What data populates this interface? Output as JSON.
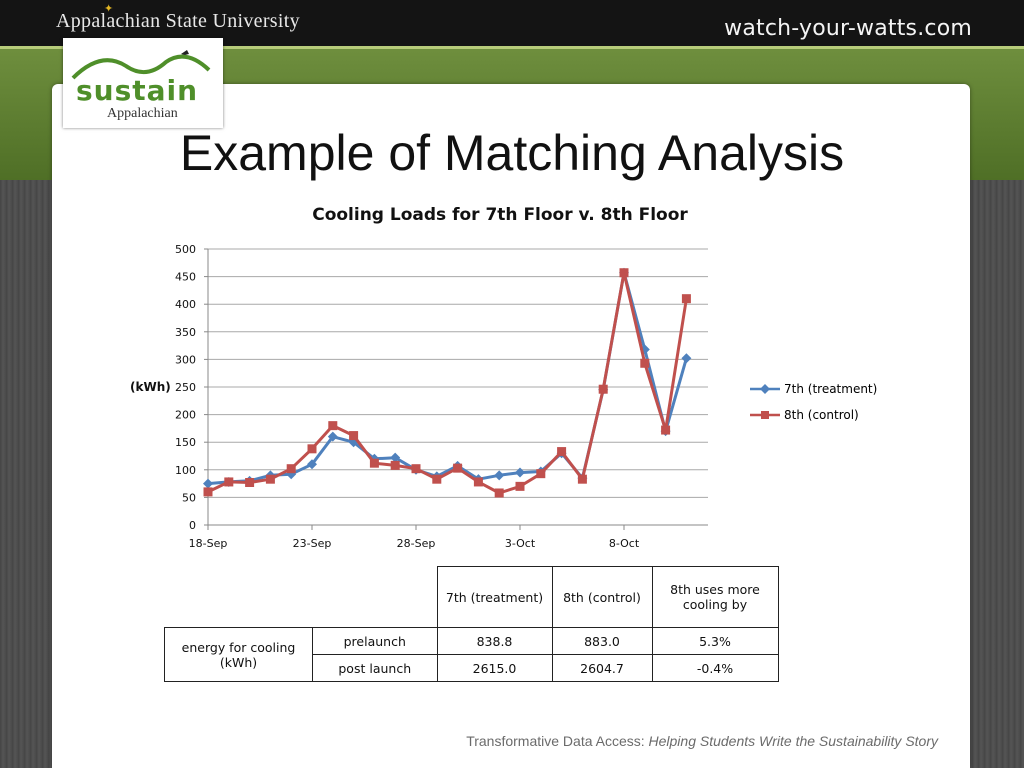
{
  "header": {
    "university": "Appalachian State University",
    "site": "watch-your-watts.com"
  },
  "logo": {
    "main": "sustain",
    "sub": "Appalachian"
  },
  "slide": {
    "title": "Example of Matching Analysis"
  },
  "chart_data": {
    "type": "line",
    "title": "Cooling Loads for 7th Floor v. 8th Floor",
    "ylabel": "(kWh)",
    "xlabel": "",
    "ylim": [
      0,
      500
    ],
    "yticks": [
      0,
      50,
      100,
      150,
      200,
      250,
      300,
      350,
      400,
      450,
      500
    ],
    "xtick_labels": [
      "18-Sep",
      "23-Sep",
      "28-Sep",
      "3-Oct",
      "8-Oct"
    ],
    "x_dates": [
      "18-Sep",
      "19-Sep",
      "20-Sep",
      "21-Sep",
      "22-Sep",
      "23-Sep",
      "24-Sep",
      "25-Sep",
      "26-Sep",
      "27-Sep",
      "28-Sep",
      "29-Sep",
      "30-Sep",
      "1-Oct",
      "2-Oct",
      "3-Oct",
      "4-Oct",
      "5-Oct",
      "6-Oct",
      "7-Oct",
      "8-Oct",
      "9-Oct",
      "10-Oct",
      "11-Oct"
    ],
    "legend_position": "right",
    "grid": true,
    "series": [
      {
        "name": "7th (treatment)",
        "color": "#4f81bd",
        "marker": "diamond",
        "values": [
          75,
          78,
          80,
          90,
          92,
          110,
          160,
          150,
          120,
          122,
          100,
          88,
          107,
          83,
          90,
          95,
          97,
          130,
          85,
          245,
          457,
          318,
          170,
          302
        ]
      },
      {
        "name": "8th (control)",
        "color": "#c0504d",
        "marker": "square",
        "values": [
          60,
          78,
          77,
          83,
          102,
          138,
          180,
          162,
          112,
          108,
          102,
          83,
          103,
          78,
          58,
          70,
          93,
          133,
          83,
          246,
          457,
          293,
          172,
          410
        ]
      }
    ]
  },
  "table": {
    "headers": [
      "7th (treatment)",
      "8th (control)",
      "8th uses more cooling by"
    ],
    "row_group_label": "energy for cooling (kWh)",
    "rows": [
      {
        "label": "prelaunch",
        "values": [
          "838.8",
          "883.0",
          "5.3%"
        ]
      },
      {
        "label": "post launch",
        "values": [
          "2615.0",
          "2604.7",
          "-0.4%"
        ]
      }
    ]
  },
  "footer": {
    "prefix": "Transformative Data Access: ",
    "italic": "Helping Students Write the Sustainability Story"
  }
}
